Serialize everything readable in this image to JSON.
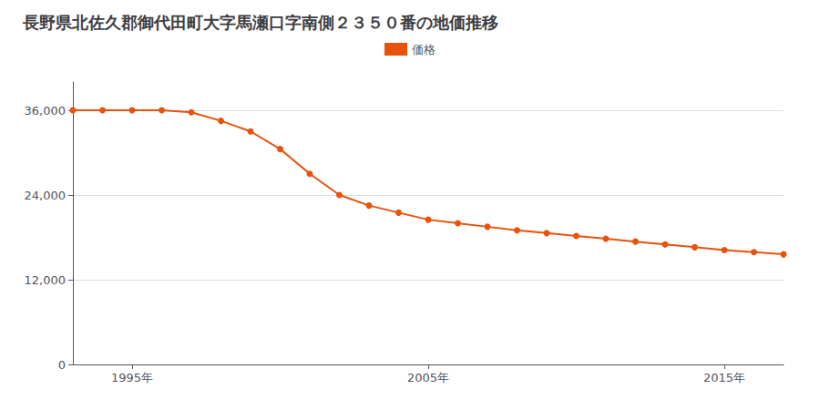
{
  "chart_data": {
    "type": "line",
    "title": "長野県北佐久郡御代田町大字馬瀬口字南側２３５０番の地価推移",
    "x": [
      1993,
      1994,
      1995,
      1996,
      1997,
      1998,
      1999,
      2000,
      2001,
      2002,
      2003,
      2004,
      2005,
      2006,
      2007,
      2008,
      2009,
      2010,
      2011,
      2012,
      2013,
      2014,
      2015,
      2016,
      2017
    ],
    "series": [
      {
        "name": "価格",
        "color": "#e8520a",
        "marker": "circle",
        "line_style": "solid",
        "values": [
          36000,
          36000,
          36000,
          36000,
          35700,
          34500,
          33000,
          30500,
          27000,
          24000,
          22500,
          21500,
          20500,
          20000,
          19500,
          19000,
          18600,
          18200,
          17800,
          17400,
          17000,
          16600,
          16200,
          15900,
          15600
        ]
      }
    ],
    "xlim": [
      1993,
      2017
    ],
    "xticks": [
      {
        "value": 1995,
        "label": "1995年"
      },
      {
        "value": 2005,
        "label": "2005年"
      },
      {
        "value": 2015,
        "label": "2015年"
      }
    ],
    "ylim": [
      0,
      40000
    ],
    "yticks": [
      0,
      {
        "value": 12000,
        "label": "12,000"
      },
      {
        "value": 24000,
        "label": "24,000"
      },
      {
        "value": 36000,
        "label": "36,000"
      }
    ],
    "grid": "y",
    "legend": "top"
  }
}
